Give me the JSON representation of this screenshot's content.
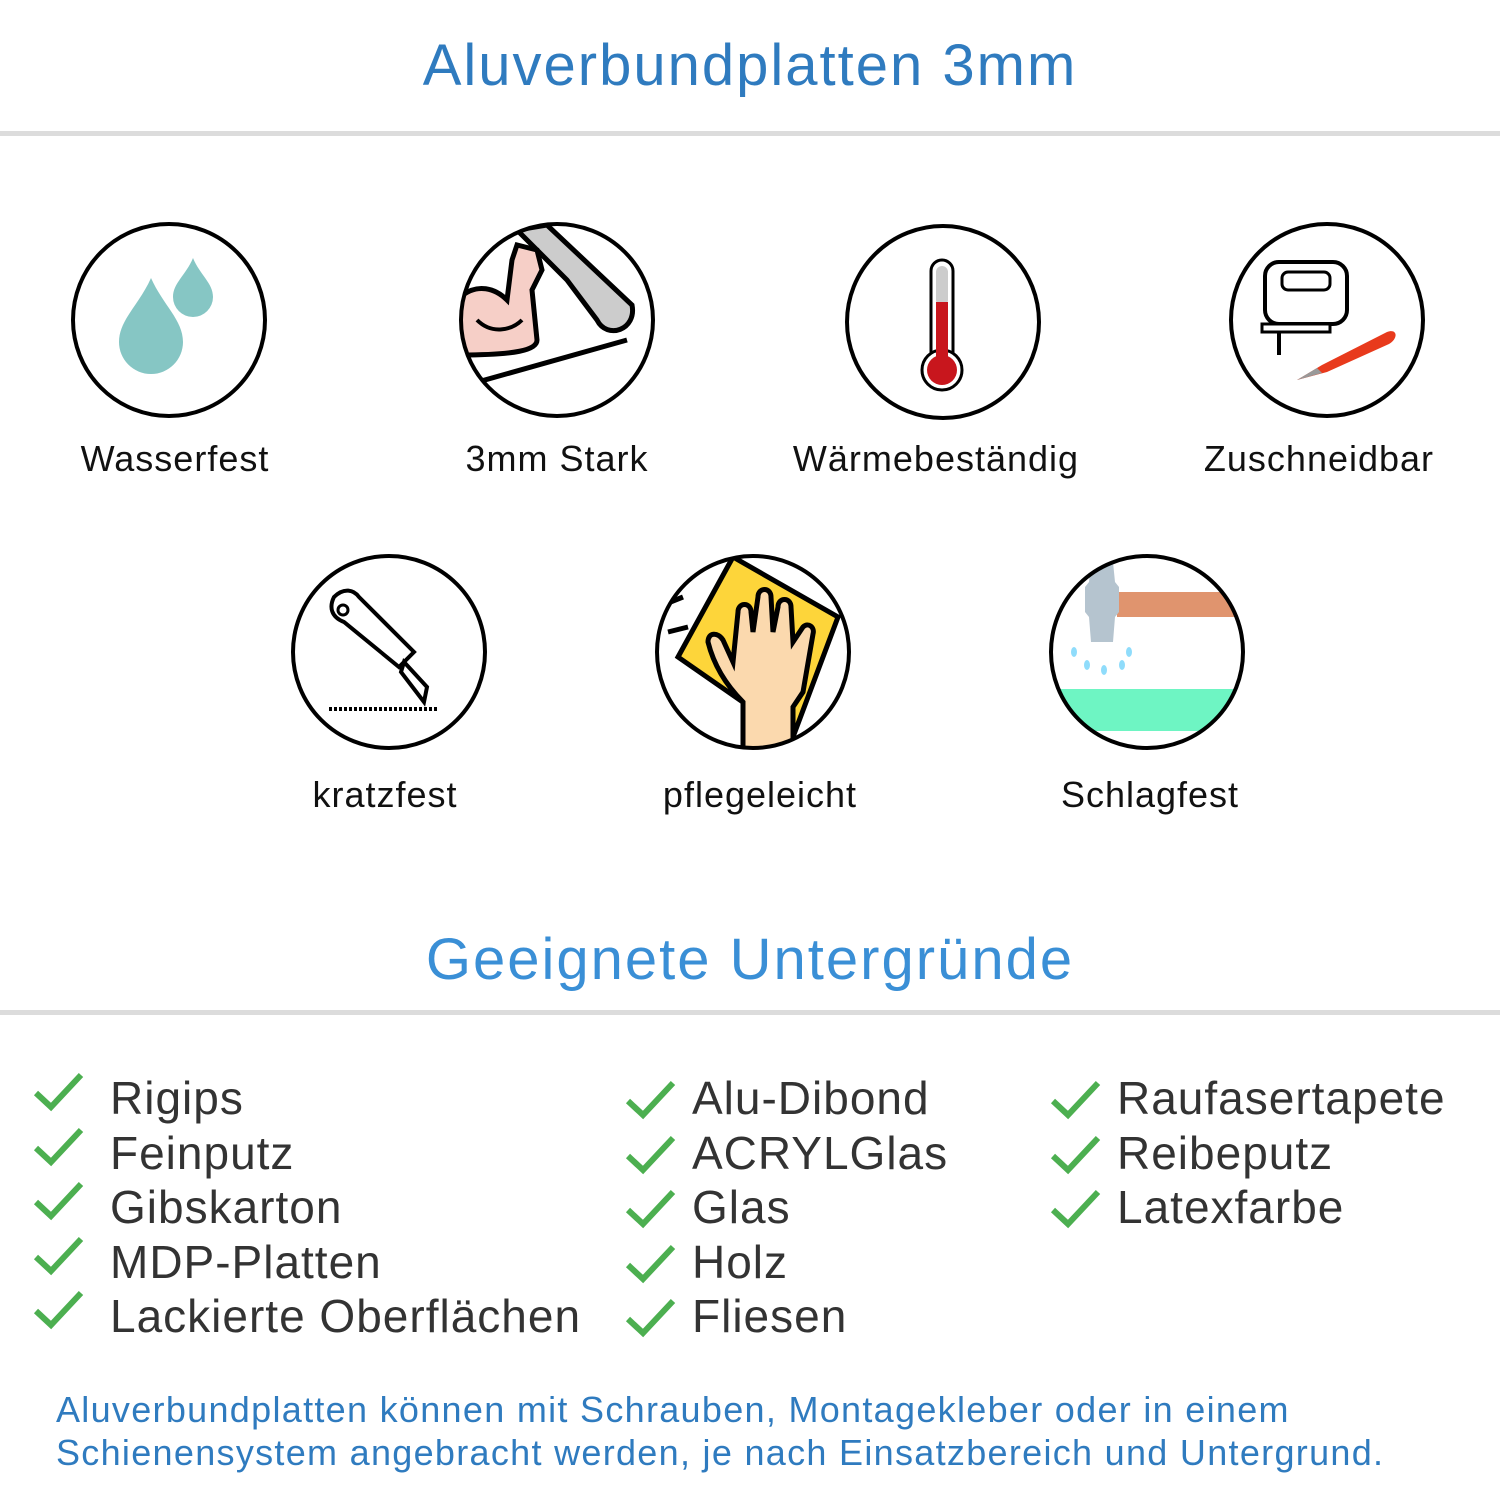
{
  "header": {
    "title": "Aluverbundplatten 3mm",
    "color": "#2f7bbf"
  },
  "features": [
    {
      "label": "Wasserfest",
      "icon": "water-drops-icon"
    },
    {
      "label": "3mm Stark",
      "icon": "strong-arm-icon"
    },
    {
      "label": "Wärmebeständig",
      "icon": "thermometer-icon"
    },
    {
      "label": "Zuschneidbar",
      "icon": "jigsaw-icon"
    },
    {
      "label": "kratzfest",
      "icon": "cutter-knife-icon"
    },
    {
      "label": "pflegeleicht",
      "icon": "hand-cloth-icon"
    },
    {
      "label": "Schlagfest",
      "icon": "hammer-icon"
    }
  ],
  "surfaces": {
    "title": "Geeignete Untergründe",
    "title_color": "#3a8fd6",
    "check_color": "#4caf50",
    "columns": [
      [
        "Rigips",
        "Feinputz",
        "Gibskarton",
        "MDP-Platten",
        "Lackierte Oberflächen"
      ],
      [
        "Alu-Dibond",
        "ACRYLGlas",
        "Glas",
        "Holz",
        "Fliesen"
      ],
      [
        "Raufasertapete",
        "Reibeputz",
        "Latexfarbe"
      ]
    ]
  },
  "footer": {
    "line1": "Aluverbundplatten können mit Schrauben, Montagekleber oder in einem",
    "line2": "Schienensystem angebracht werden, je nach Einsatzbereich und Untergrund."
  }
}
